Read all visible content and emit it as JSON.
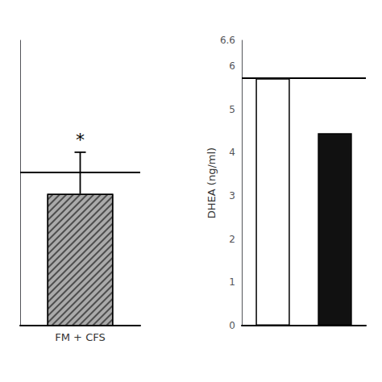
{
  "chart_data": [
    {
      "type": "bar",
      "categories": [
        "FM + CFS"
      ],
      "values": [
        3.4
      ],
      "errors": [
        0.38
      ],
      "color": "#aaaaaa",
      "reference_line": 3.6,
      "annotation": "*",
      "ylim": [
        2.2,
        4.8
      ],
      "yticks": [],
      "tick_labels": "x",
      "grid": false
    },
    {
      "type": "bar",
      "categories": [
        null,
        null
      ],
      "values": [
        5.72,
        4.45
      ],
      "colors": [
        "#ffffff",
        "#111111"
      ],
      "reference_line": 5.72,
      "ylabel": "DHEA (ng/ml)",
      "ylim": [
        0,
        6.6
      ],
      "yticks": [
        0,
        1,
        2,
        3,
        4,
        5,
        6
      ],
      "tick_labels": "y",
      "grid": false
    }
  ]
}
